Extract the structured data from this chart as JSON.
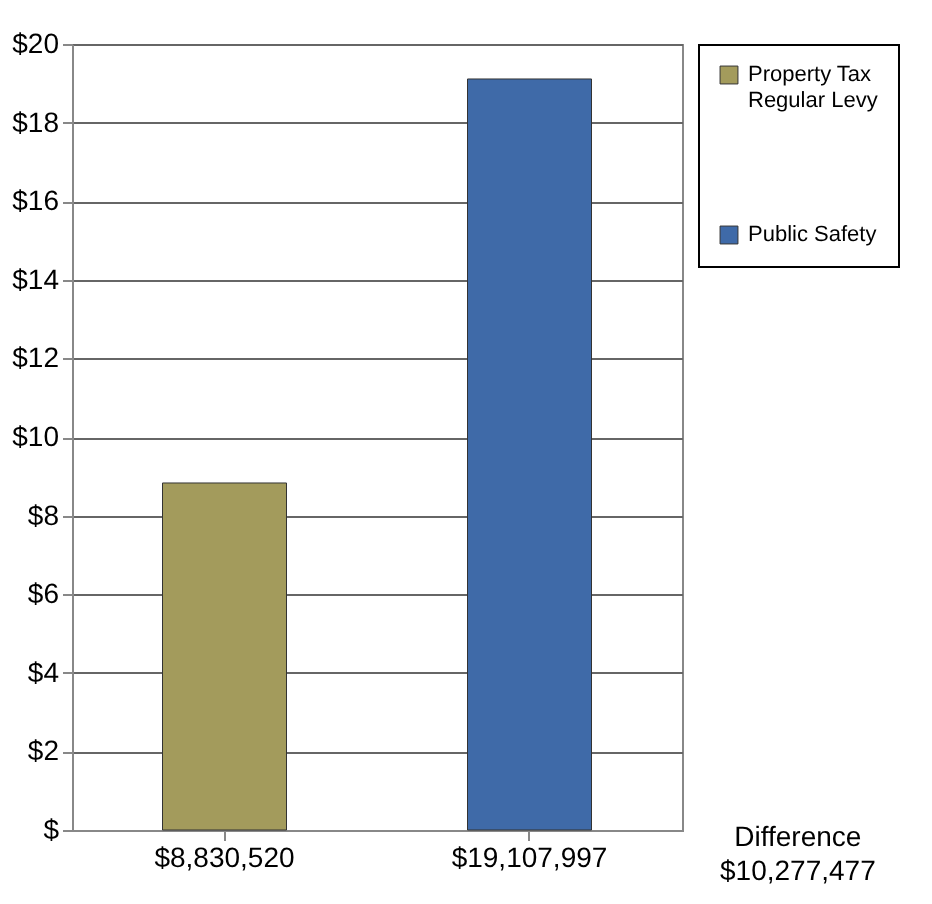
{
  "chart_data": {
    "type": "bar",
    "categories": [
      "$8,830,520",
      "$19,107,997"
    ],
    "series": [
      {
        "name": "Property Tax Regular Levy",
        "color": "#a39b5c",
        "values": [
          8.83,
          null
        ]
      },
      {
        "name": "Public Safety",
        "color": "#3f6aa8",
        "values": [
          null,
          19.11
        ]
      }
    ],
    "ylim": [
      0,
      20
    ],
    "yticks": [
      {
        "value": 0,
        "label": "$"
      },
      {
        "value": 2,
        "label": "$2"
      },
      {
        "value": 4,
        "label": "$4"
      },
      {
        "value": 6,
        "label": "$6"
      },
      {
        "value": 8,
        "label": "$8"
      },
      {
        "value": 10,
        "label": "$10"
      },
      {
        "value": 12,
        "label": "$12"
      },
      {
        "value": 14,
        "label": "$14"
      },
      {
        "value": 16,
        "label": "$16"
      },
      {
        "value": 18,
        "label": "$18"
      },
      {
        "value": 20,
        "label": "$20"
      }
    ],
    "grid": "y",
    "legend": "right",
    "annotations": [
      "Difference\n$10,277,477"
    ]
  }
}
